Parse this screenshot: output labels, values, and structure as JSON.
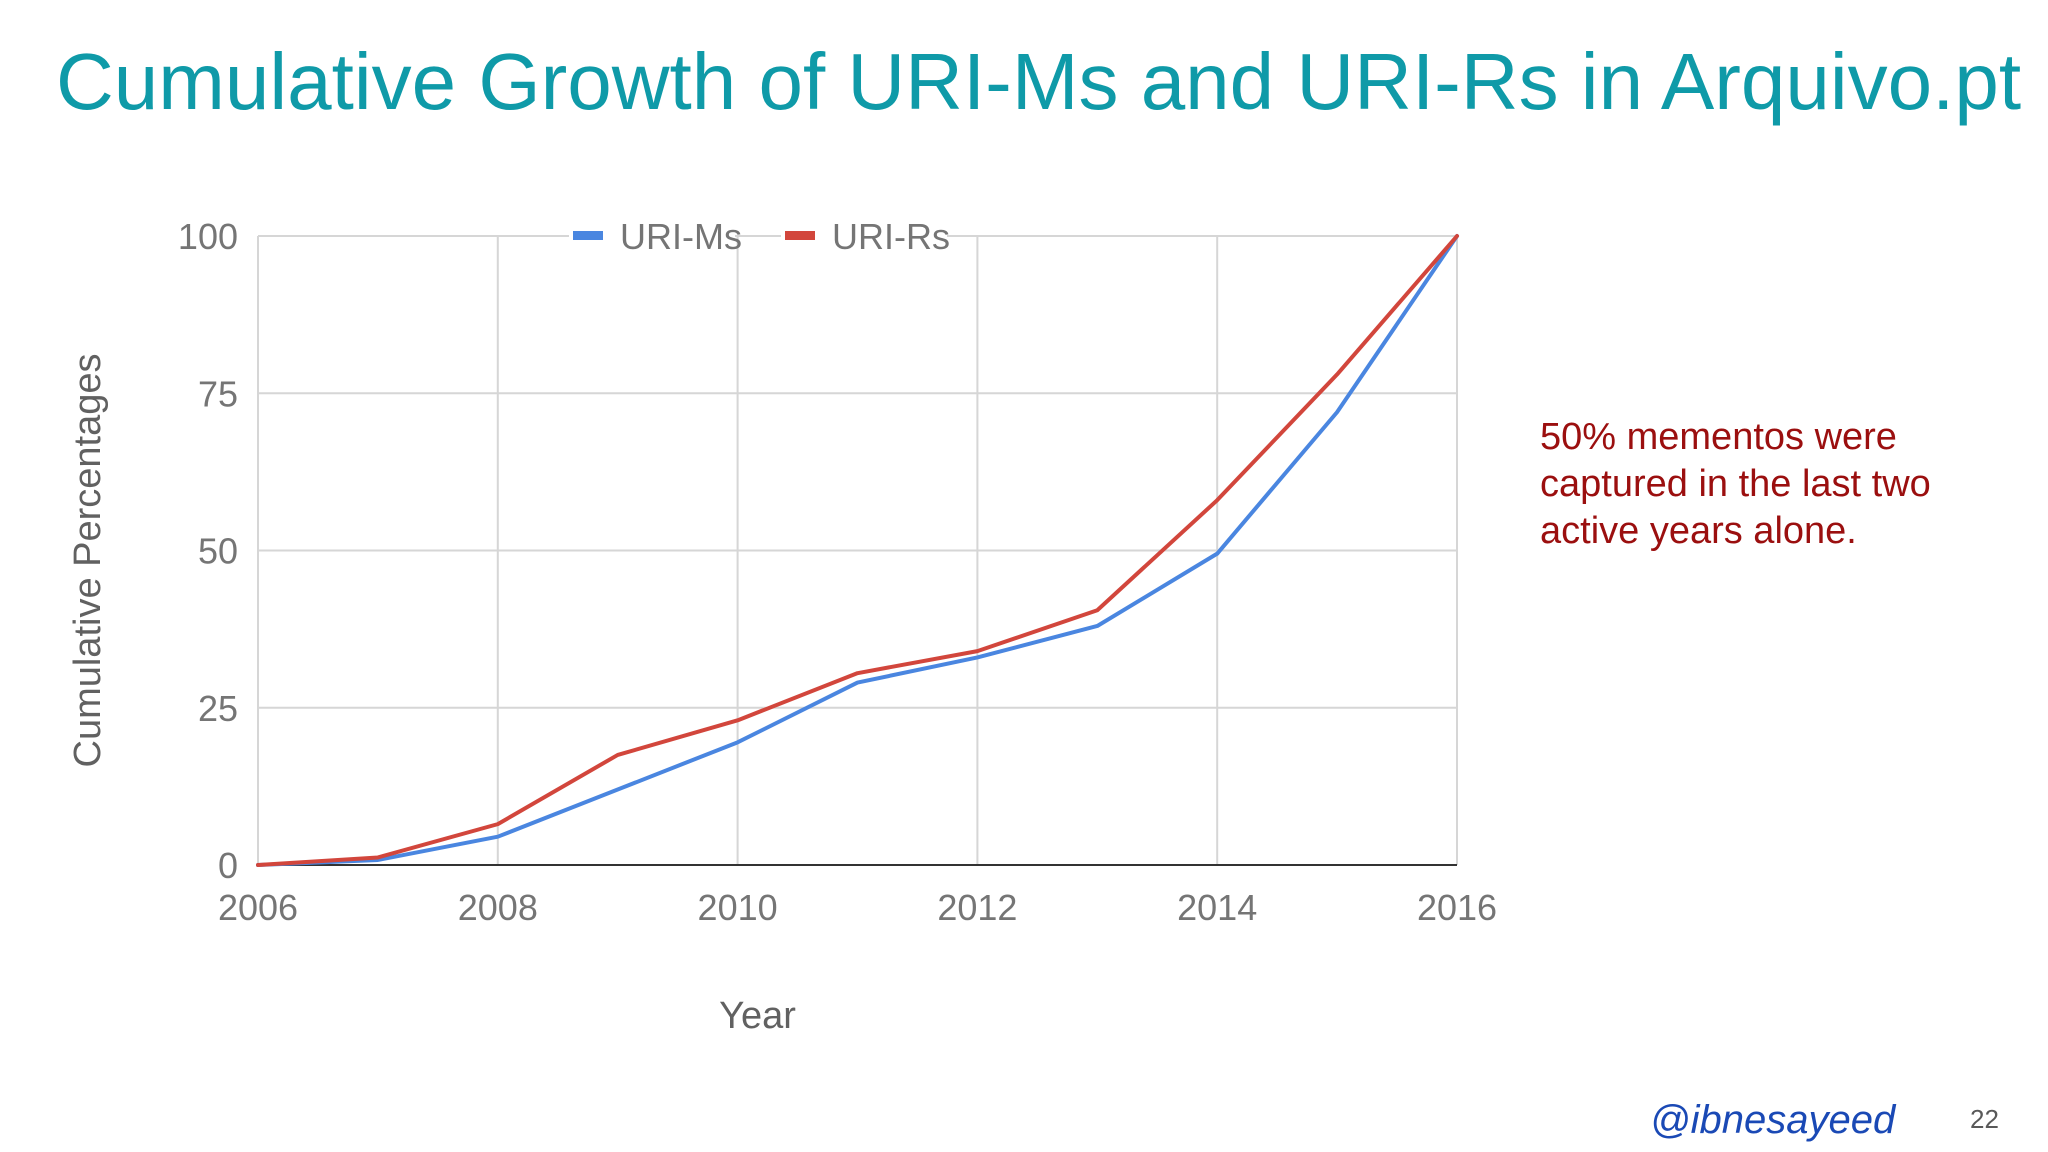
{
  "slide": {
    "title": "Cumulative Growth of URI-Ms and URI-Rs in Arquivo.pt",
    "annotation": "50% mementos were captured in the last two active years alone.",
    "handle": "@ibnesayeed",
    "page_number": "22"
  },
  "chart_data": {
    "type": "line",
    "title": "",
    "xlabel": "Year",
    "ylabel": "Cumulative Percentages",
    "x": [
      2006,
      2007,
      2008,
      2009,
      2010,
      2011,
      2012,
      2013,
      2014,
      2015,
      2016
    ],
    "xlim": [
      2006,
      2016
    ],
    "ylim": [
      0,
      100
    ],
    "xticks": [
      2006,
      2008,
      2010,
      2012,
      2014,
      2016
    ],
    "yticks": [
      0,
      25,
      50,
      75,
      100
    ],
    "grid": true,
    "legend_position": "top",
    "series": [
      {
        "name": "URI-Ms",
        "color": "#4a86e0",
        "values": [
          0,
          0.8,
          4.5,
          12,
          19.5,
          29,
          33,
          38,
          49.5,
          72,
          100
        ]
      },
      {
        "name": "URI-Rs",
        "color": "#d2463c",
        "values": [
          0,
          1.2,
          6.5,
          17.5,
          23,
          30.5,
          34,
          40.5,
          58,
          78,
          100
        ]
      }
    ]
  }
}
